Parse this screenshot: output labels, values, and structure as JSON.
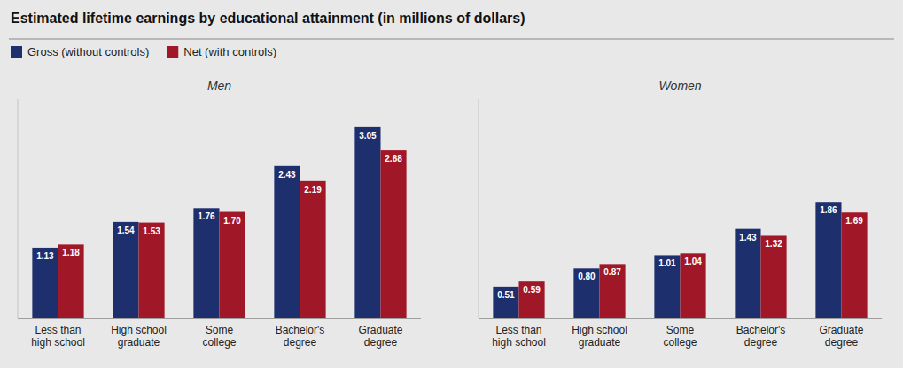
{
  "title": "Estimated lifetime earnings by educational attainment (in millions of dollars)",
  "chart_data": [
    {
      "type": "bar",
      "title": "Men",
      "categories": [
        "Less than\nhigh school",
        "High school\ngraduate",
        "Some\ncollege",
        "Bachelor's\ndegree",
        "Graduate\ndegree"
      ],
      "series": [
        {
          "name": "Gross (without controls)",
          "color": "#1e2f6e",
          "values": [
            1.13,
            1.54,
            1.76,
            2.43,
            3.05
          ],
          "value_labels": [
            "1.13",
            "1.54",
            "1.76",
            "2.43",
            "3.05"
          ]
        },
        {
          "name": "Net (with controls)",
          "color": "#a01828",
          "values": [
            1.18,
            1.53,
            1.7,
            2.19,
            2.68
          ],
          "value_labels": [
            "1.18",
            "1.53",
            "1.70",
            "2.19",
            "2.68"
          ]
        }
      ],
      "ylim": [
        0,
        3.5
      ],
      "grid": false,
      "legend": "upper left",
      "data_labels": true,
      "tick_labels": "x"
    },
    {
      "type": "bar",
      "title": "Women",
      "categories": [
        "Less than\nhigh school",
        "High school\ngraduate",
        "Some\ncollege",
        "Bachelor's\ndegree",
        "Graduate\ndegree"
      ],
      "series": [
        {
          "name": "Gross (without controls)",
          "color": "#1e2f6e",
          "values": [
            0.51,
            0.8,
            1.01,
            1.43,
            1.86
          ],
          "value_labels": [
            "0.51",
            "0.80",
            "1.01",
            "1.43",
            "1.86"
          ]
        },
        {
          "name": "Net (with controls)",
          "color": "#a01828",
          "values": [
            0.59,
            0.87,
            1.04,
            1.32,
            1.69
          ],
          "value_labels": [
            "0.59",
            "0.87",
            "1.04",
            "1.32",
            "1.69"
          ]
        }
      ],
      "ylim": [
        0,
        3.5
      ],
      "grid": false,
      "data_labels": true,
      "tick_labels": "x"
    }
  ]
}
